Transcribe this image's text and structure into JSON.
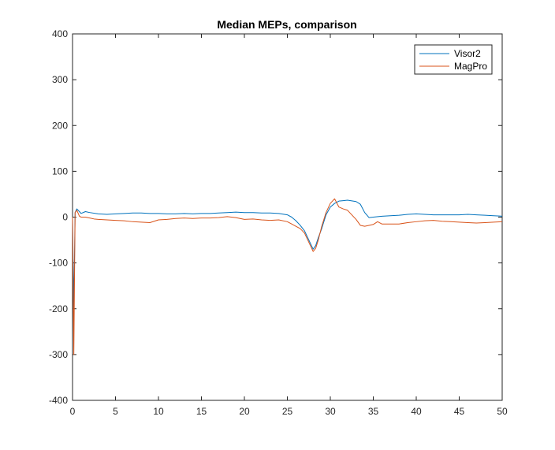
{
  "chart_data": {
    "type": "line",
    "title": "Median MEPs, comparison",
    "xlabel": "",
    "ylabel": "",
    "xlim": [
      0,
      50
    ],
    "ylim": [
      -400,
      400
    ],
    "xticks": [
      0,
      5,
      10,
      15,
      20,
      25,
      30,
      35,
      40,
      45,
      50
    ],
    "yticks": [
      -400,
      -300,
      -200,
      -100,
      0,
      100,
      200,
      300,
      400
    ],
    "grid": false,
    "legend_placement": "top-right",
    "series": [
      {
        "name": "Visor2",
        "color": "#0072BD",
        "x": [
          0,
          0.15,
          0.3,
          0.5,
          0.8,
          1.0,
          1.5,
          2.0,
          3.0,
          4.0,
          5.0,
          6.0,
          7.0,
          8.0,
          9.0,
          10.0,
          11.0,
          12.0,
          13.0,
          14.0,
          15.0,
          16.0,
          17.0,
          18.0,
          19.0,
          20.0,
          21.0,
          22.0,
          23.0,
          24.0,
          25.0,
          25.5,
          26.0,
          26.5,
          27.0,
          27.5,
          28.0,
          28.3,
          28.6,
          29.0,
          29.5,
          30.0,
          30.5,
          31.0,
          31.5,
          32.0,
          33.0,
          33.5,
          34.0,
          34.5,
          35.0,
          36.0,
          37.0,
          38.0,
          39.0,
          40.0,
          41.0,
          42.0,
          43.0,
          44.0,
          45.0,
          46.0,
          47.0,
          48.0,
          49.0,
          50.0
        ],
        "y": [
          0,
          -200,
          10,
          18,
          12,
          8,
          12,
          10,
          7,
          6,
          7,
          8,
          9,
          9,
          8,
          8,
          7,
          7,
          8,
          7,
          8,
          8,
          9,
          10,
          11,
          10,
          10,
          9,
          9,
          8,
          5,
          0,
          -8,
          -18,
          -30,
          -50,
          -70,
          -62,
          -45,
          -25,
          5,
          22,
          30,
          35,
          36,
          37,
          34,
          28,
          10,
          -1,
          0,
          2,
          3,
          4,
          6,
          7,
          6,
          5,
          5,
          5,
          5,
          6,
          5,
          4,
          3,
          2
        ]
      },
      {
        "name": "MagPro",
        "color": "#D95319",
        "x": [
          0,
          0.15,
          0.3,
          0.5,
          0.8,
          1.0,
          1.5,
          2.0,
          2.5,
          3.0,
          4.0,
          5.0,
          6.0,
          7.0,
          8.0,
          9.0,
          10.0,
          11.0,
          12.0,
          13.0,
          14.0,
          15.0,
          16.0,
          17.0,
          18.0,
          19.0,
          20.0,
          21.0,
          22.0,
          23.0,
          24.0,
          25.0,
          25.5,
          26.0,
          26.5,
          27.0,
          27.5,
          28.0,
          28.3,
          28.6,
          29.0,
          29.5,
          30.0,
          30.5,
          31.0,
          31.5,
          32.0,
          33.0,
          33.5,
          34.0,
          34.5,
          35.0,
          35.5,
          36.0,
          37.0,
          38.0,
          39.0,
          40.0,
          41.0,
          42.0,
          43.0,
          44.0,
          45.0,
          46.0,
          47.0,
          48.0,
          49.0,
          50.0
        ],
        "y": [
          0,
          -300,
          10,
          15,
          2,
          0,
          0,
          -2,
          -4,
          -5,
          -6,
          -7,
          -8,
          -10,
          -11,
          -12,
          -6,
          -5,
          -3,
          -2,
          -3,
          -2,
          -2,
          -1,
          1,
          -1,
          -5,
          -4,
          -6,
          -7,
          -6,
          -10,
          -15,
          -20,
          -25,
          -35,
          -55,
          -75,
          -68,
          -50,
          -20,
          10,
          30,
          40,
          22,
          18,
          15,
          -5,
          -18,
          -20,
          -18,
          -16,
          -10,
          -15,
          -15,
          -15,
          -12,
          -10,
          -8,
          -7,
          -9,
          -10,
          -11,
          -12,
          -13,
          -12,
          -11,
          -10
        ]
      }
    ]
  }
}
